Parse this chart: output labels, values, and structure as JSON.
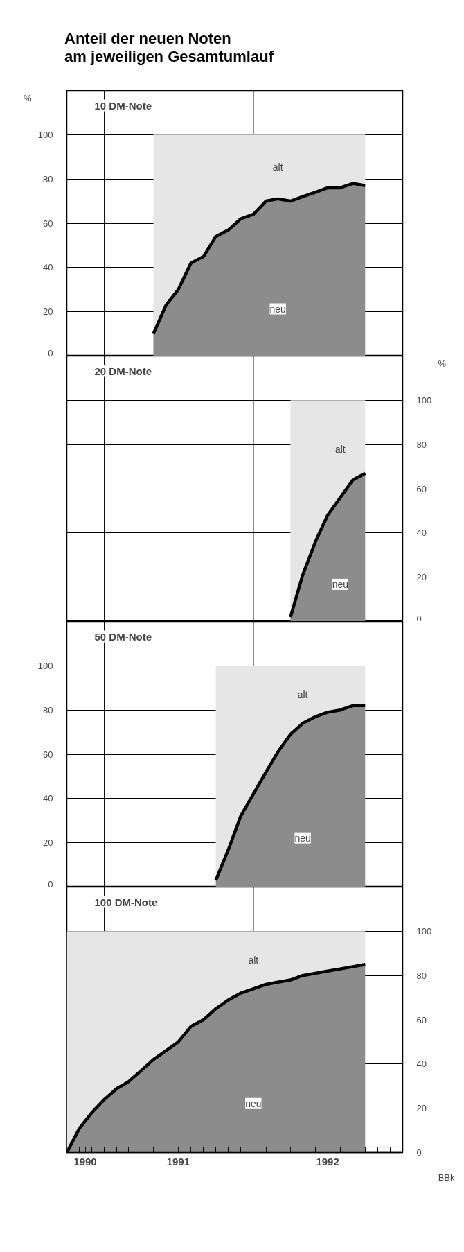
{
  "chart_data": [
    {
      "type": "area",
      "title": "Anteil der neuen Noten\nam jeweiligen Gesamtumlauf",
      "subtitle": "10 DM-Note",
      "ylabel": "%",
      "stacked": true,
      "x": [
        "1991-05",
        "1991-06",
        "1991-07",
        "1991-08",
        "1991-09",
        "1991-10",
        "1991-11",
        "1991-12",
        "1992-01",
        "1992-02",
        "1992-03",
        "1992-04",
        "1992-05",
        "1992-06",
        "1992-07",
        "1992-08",
        "1992-09",
        "1992-10"
      ],
      "series": [
        {
          "name": "neu",
          "color": "#8c8c8c",
          "values": [
            10,
            23,
            30,
            42,
            45,
            54,
            57,
            62,
            64,
            70,
            71,
            70,
            72,
            74,
            76,
            76,
            78,
            77
          ]
        },
        {
          "name": "alt",
          "color": "#e6e6e6",
          "values": [
            90,
            77,
            70,
            58,
            55,
            46,
            43,
            38,
            36,
            30,
            29,
            30,
            28,
            26,
            24,
            24,
            22,
            23
          ]
        }
      ],
      "xlim": [
        "1990-10",
        "1993-01"
      ],
      "ylim": [
        0,
        120
      ],
      "yticks": [
        0,
        20,
        40,
        60,
        80,
        100
      ],
      "grid": "y",
      "tick_labels": "y",
      "ref_lines": [
        {
          "axis": "x",
          "value": "1991-01"
        },
        {
          "axis": "x",
          "value": "1992-01"
        }
      ]
    },
    {
      "type": "area",
      "title": "20 DM-Note",
      "y2label": "%",
      "stacked": true,
      "x": [
        "1992-04",
        "1992-05",
        "1992-06",
        "1992-07",
        "1992-08",
        "1992-09",
        "1992-10"
      ],
      "series": [
        {
          "name": "neu",
          "color": "#8c8c8c",
          "axis": "y2",
          "values": [
            2,
            21,
            36,
            48,
            56,
            64,
            67
          ]
        },
        {
          "name": "alt",
          "color": "#e6e6e6",
          "axis": "y2",
          "values": [
            98,
            79,
            64,
            52,
            44,
            36,
            33
          ]
        }
      ],
      "xlim": [
        "1990-10",
        "1993-01"
      ],
      "y2lim": [
        0,
        120
      ],
      "y2ticks": [
        0,
        20,
        40,
        60,
        80,
        100
      ],
      "grid": "y",
      "tick_labels": "y",
      "ref_lines": [
        {
          "axis": "x",
          "value": "1991-01"
        },
        {
          "axis": "x",
          "value": "1992-01"
        }
      ]
    },
    {
      "type": "area",
      "title": "50 DM-Note",
      "stacked": true,
      "x": [
        "1991-10",
        "1991-11",
        "1991-12",
        "1992-01",
        "1992-02",
        "1992-03",
        "1992-04",
        "1992-05",
        "1992-06",
        "1992-07",
        "1992-08",
        "1992-09",
        "1992-10"
      ],
      "series": [
        {
          "name": "neu",
          "color": "#8c8c8c",
          "values": [
            3,
            17,
            32,
            42,
            52,
            61,
            69,
            74,
            77,
            79,
            80,
            82,
            82
          ]
        },
        {
          "name": "alt",
          "color": "#e6e6e6",
          "values": [
            97,
            83,
            68,
            58,
            48,
            39,
            31,
            26,
            23,
            21,
            20,
            18,
            18
          ]
        }
      ],
      "xlim": [
        "1990-10",
        "1993-01"
      ],
      "ylim": [
        0,
        120
      ],
      "yticks": [
        0,
        20,
        40,
        60,
        80,
        100
      ],
      "grid": "y",
      "tick_labels": "y",
      "ref_lines": [
        {
          "axis": "x",
          "value": "1991-01"
        },
        {
          "axis": "x",
          "value": "1992-01"
        }
      ]
    },
    {
      "type": "area",
      "title": "100 DM-Note",
      "stacked": true,
      "x": [
        "1990-10",
        "1990-11",
        "1990-12",
        "1991-01",
        "1991-02",
        "1991-03",
        "1991-04",
        "1991-05",
        "1991-06",
        "1991-07",
        "1991-08",
        "1991-09",
        "1991-10",
        "1991-11",
        "1991-12",
        "1992-01",
        "1992-02",
        "1992-03",
        "1992-04",
        "1992-05",
        "1992-06",
        "1992-07",
        "1992-08",
        "1992-09",
        "1992-10"
      ],
      "series": [
        {
          "name": "neu",
          "color": "#8c8c8c",
          "axis": "y2",
          "values": [
            0,
            11,
            18,
            24,
            29,
            32,
            37,
            42,
            46,
            50,
            57,
            60,
            65,
            69,
            72,
            74,
            76,
            77,
            78,
            80,
            81,
            82,
            83,
            84,
            85
          ]
        },
        {
          "name": "alt",
          "color": "#e6e6e6",
          "axis": "y2",
          "values": [
            100,
            89,
            82,
            76,
            71,
            68,
            63,
            58,
            54,
            50,
            43,
            40,
            35,
            31,
            28,
            26,
            24,
            23,
            22,
            20,
            19,
            18,
            17,
            16,
            15
          ]
        }
      ],
      "xlim": [
        "1990-10",
        "1993-01"
      ],
      "y2lim": [
        0,
        120
      ],
      "y2ticks": [
        0,
        20,
        40,
        60,
        80,
        100
      ],
      "grid": "y",
      "xticks": [
        {
          "value": "1990-11",
          "label": null
        },
        {
          "value": "1990-11-15",
          "label": "1990"
        },
        {
          "value": "1990-12",
          "label": null
        },
        {
          "value": "1991-01",
          "label": null
        },
        {
          "value": "1991-02",
          "label": null
        },
        {
          "value": "1991-03",
          "label": null
        },
        {
          "value": "1991-04",
          "label": null
        },
        {
          "value": "1991-05",
          "label": null
        },
        {
          "value": "1991-06",
          "label": null
        },
        {
          "value": "1991-07",
          "label": "1991"
        },
        {
          "value": "1991-08",
          "label": null
        },
        {
          "value": "1991-09",
          "label": null
        },
        {
          "value": "1991-10",
          "label": null
        },
        {
          "value": "1991-11",
          "label": null
        },
        {
          "value": "1991-12",
          "label": null
        },
        {
          "value": "1992-01",
          "label": null
        },
        {
          "value": "1992-02",
          "label": null
        },
        {
          "value": "1992-03",
          "label": null
        },
        {
          "value": "1992-04",
          "label": null
        },
        {
          "value": "1992-05",
          "label": null
        },
        {
          "value": "1992-06",
          "label": null
        },
        {
          "value": "1992-07",
          "label": "1992"
        },
        {
          "value": "1992-08",
          "label": null
        },
        {
          "value": "1992-09",
          "label": null
        },
        {
          "value": "1992-10",
          "label": null
        },
        {
          "value": "1992-11",
          "label": null
        },
        {
          "value": "1992-12",
          "label": null
        }
      ],
      "ref_lines": [
        {
          "axis": "x",
          "value": "1991-01"
        },
        {
          "axis": "x",
          "value": "1992-01"
        }
      ],
      "annotations": [
        "BBk"
      ]
    }
  ]
}
